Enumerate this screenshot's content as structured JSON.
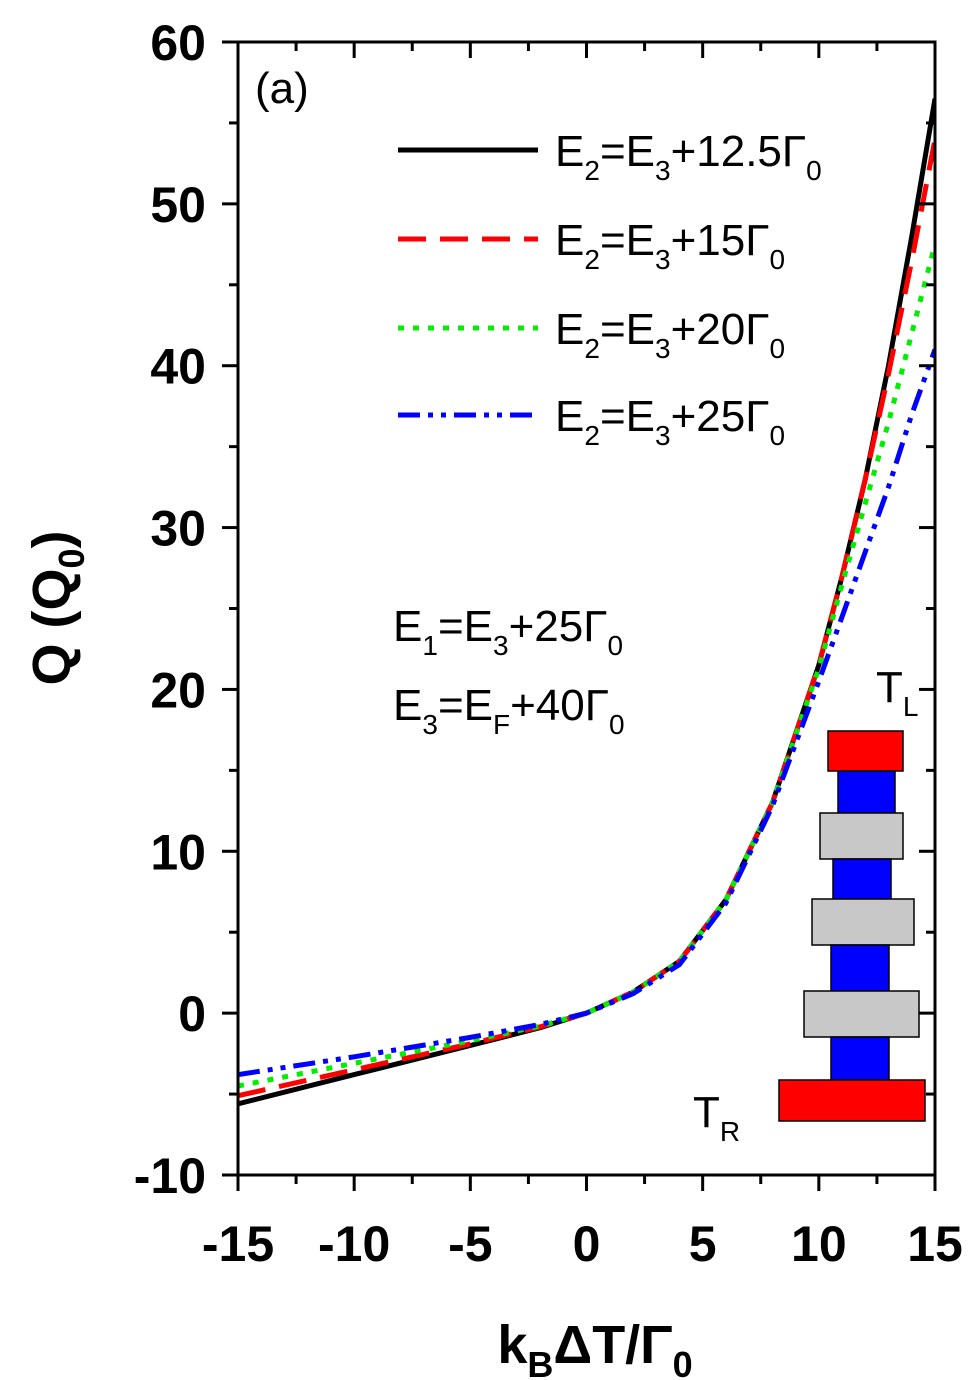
{
  "chart_data": {
    "type": "line",
    "panel_label": "(a)",
    "xlabel": {
      "main": "k",
      "sub1": "B",
      "mid": "ΔT/Γ",
      "sub2": "0"
    },
    "ylabel": {
      "main": "Q (Q",
      "sub": "0",
      "end": ")"
    },
    "xlim": [
      -15,
      15
    ],
    "ylim": [
      -10,
      60
    ],
    "x_ticks": [
      -15,
      -10,
      -5,
      0,
      5,
      10,
      15
    ],
    "y_ticks": [
      -10,
      0,
      10,
      20,
      30,
      40,
      50,
      60
    ],
    "x_tick_labels": [
      "-15",
      "-10",
      "-5",
      "0",
      "5",
      "10",
      "15"
    ],
    "y_tick_labels": [
      "-10",
      "0",
      "10",
      "20",
      "30",
      "40",
      "50",
      "60"
    ],
    "grid": false,
    "legend_position": "top-right",
    "series": [
      {
        "name": "E2=E3+12.5Γ0",
        "legend": {
          "a": "E",
          "s1": "2",
          "b": "=E",
          "s2": "3",
          "c": "+12.5Γ",
          "s3": "0"
        },
        "color": "#000000",
        "dash": "none",
        "x": [
          -15,
          -10,
          -5,
          -2,
          0,
          2,
          4,
          6,
          8,
          10,
          11,
          12,
          13,
          14,
          15
        ],
        "y": [
          -5.6,
          -3.8,
          -2.0,
          -0.9,
          0,
          1.3,
          3.2,
          7.0,
          13.0,
          21.5,
          27.0,
          33.0,
          40.0,
          48.0,
          56.5
        ]
      },
      {
        "name": "E2=E3+15Γ0",
        "legend": {
          "a": "E",
          "s1": "2",
          "b": "=E",
          "s2": "3",
          "c": "+15Γ",
          "s3": "0"
        },
        "color": "#ff0000",
        "dash": "28 14",
        "x": [
          -15,
          -10,
          -5,
          -2,
          0,
          2,
          4,
          6,
          8,
          10,
          11,
          12,
          13,
          14,
          15
        ],
        "y": [
          -5.1,
          -3.5,
          -1.9,
          -0.85,
          0,
          1.3,
          3.2,
          7.0,
          13.0,
          21.5,
          27.0,
          33.0,
          39.5,
          46.5,
          54.0
        ]
      },
      {
        "name": "E2=E3+20Γ0",
        "legend": {
          "a": "E",
          "s1": "2",
          "b": "=E",
          "s2": "3",
          "c": "+20Γ",
          "s3": "0"
        },
        "color": "#00ee00",
        "dash": "6 9",
        "x": [
          -15,
          -10,
          -5,
          -2,
          0,
          2,
          4,
          6,
          8,
          10,
          11,
          12,
          13,
          14,
          15
        ],
        "y": [
          -4.5,
          -3.1,
          -1.7,
          -0.8,
          0,
          1.3,
          3.2,
          7.0,
          13.0,
          21.3,
          26.5,
          31.5,
          36.5,
          42.0,
          47.5
        ]
      },
      {
        "name": "E2=E3+25Γ0",
        "legend": {
          "a": "E",
          "s1": "2",
          "b": "=E",
          "s2": "3",
          "c": "+25Γ",
          "s3": "0"
        },
        "color": "#0000ff",
        "dash": "22 8 5 8 5 8",
        "x": [
          -15,
          -10,
          -5,
          -2,
          0,
          2,
          4,
          6,
          8,
          10,
          11,
          12,
          13,
          14,
          15
        ],
        "y": [
          -3.8,
          -2.7,
          -1.5,
          -0.7,
          0,
          1.2,
          3.0,
          6.8,
          12.8,
          20.5,
          24.5,
          28.5,
          32.5,
          37.0,
          41.0
        ]
      }
    ],
    "annotations": {
      "line1": {
        "a": "E",
        "s1": "1",
        "b": "=E",
        "s2": "3",
        "c": "+25Γ",
        "s3": "0"
      },
      "line2": {
        "a": "E",
        "s1": "3",
        "b": "=E",
        "s2": "F",
        "c": "+40Γ",
        "s3": "0"
      }
    },
    "inset": {
      "top_label": {
        "a": "T",
        "s": "L"
      },
      "bottom_label": {
        "a": "T",
        "s": "R"
      },
      "colors": {
        "lead": "#ff0000",
        "dot": "#0000ff",
        "barrier": "#c8c8c8"
      }
    }
  }
}
